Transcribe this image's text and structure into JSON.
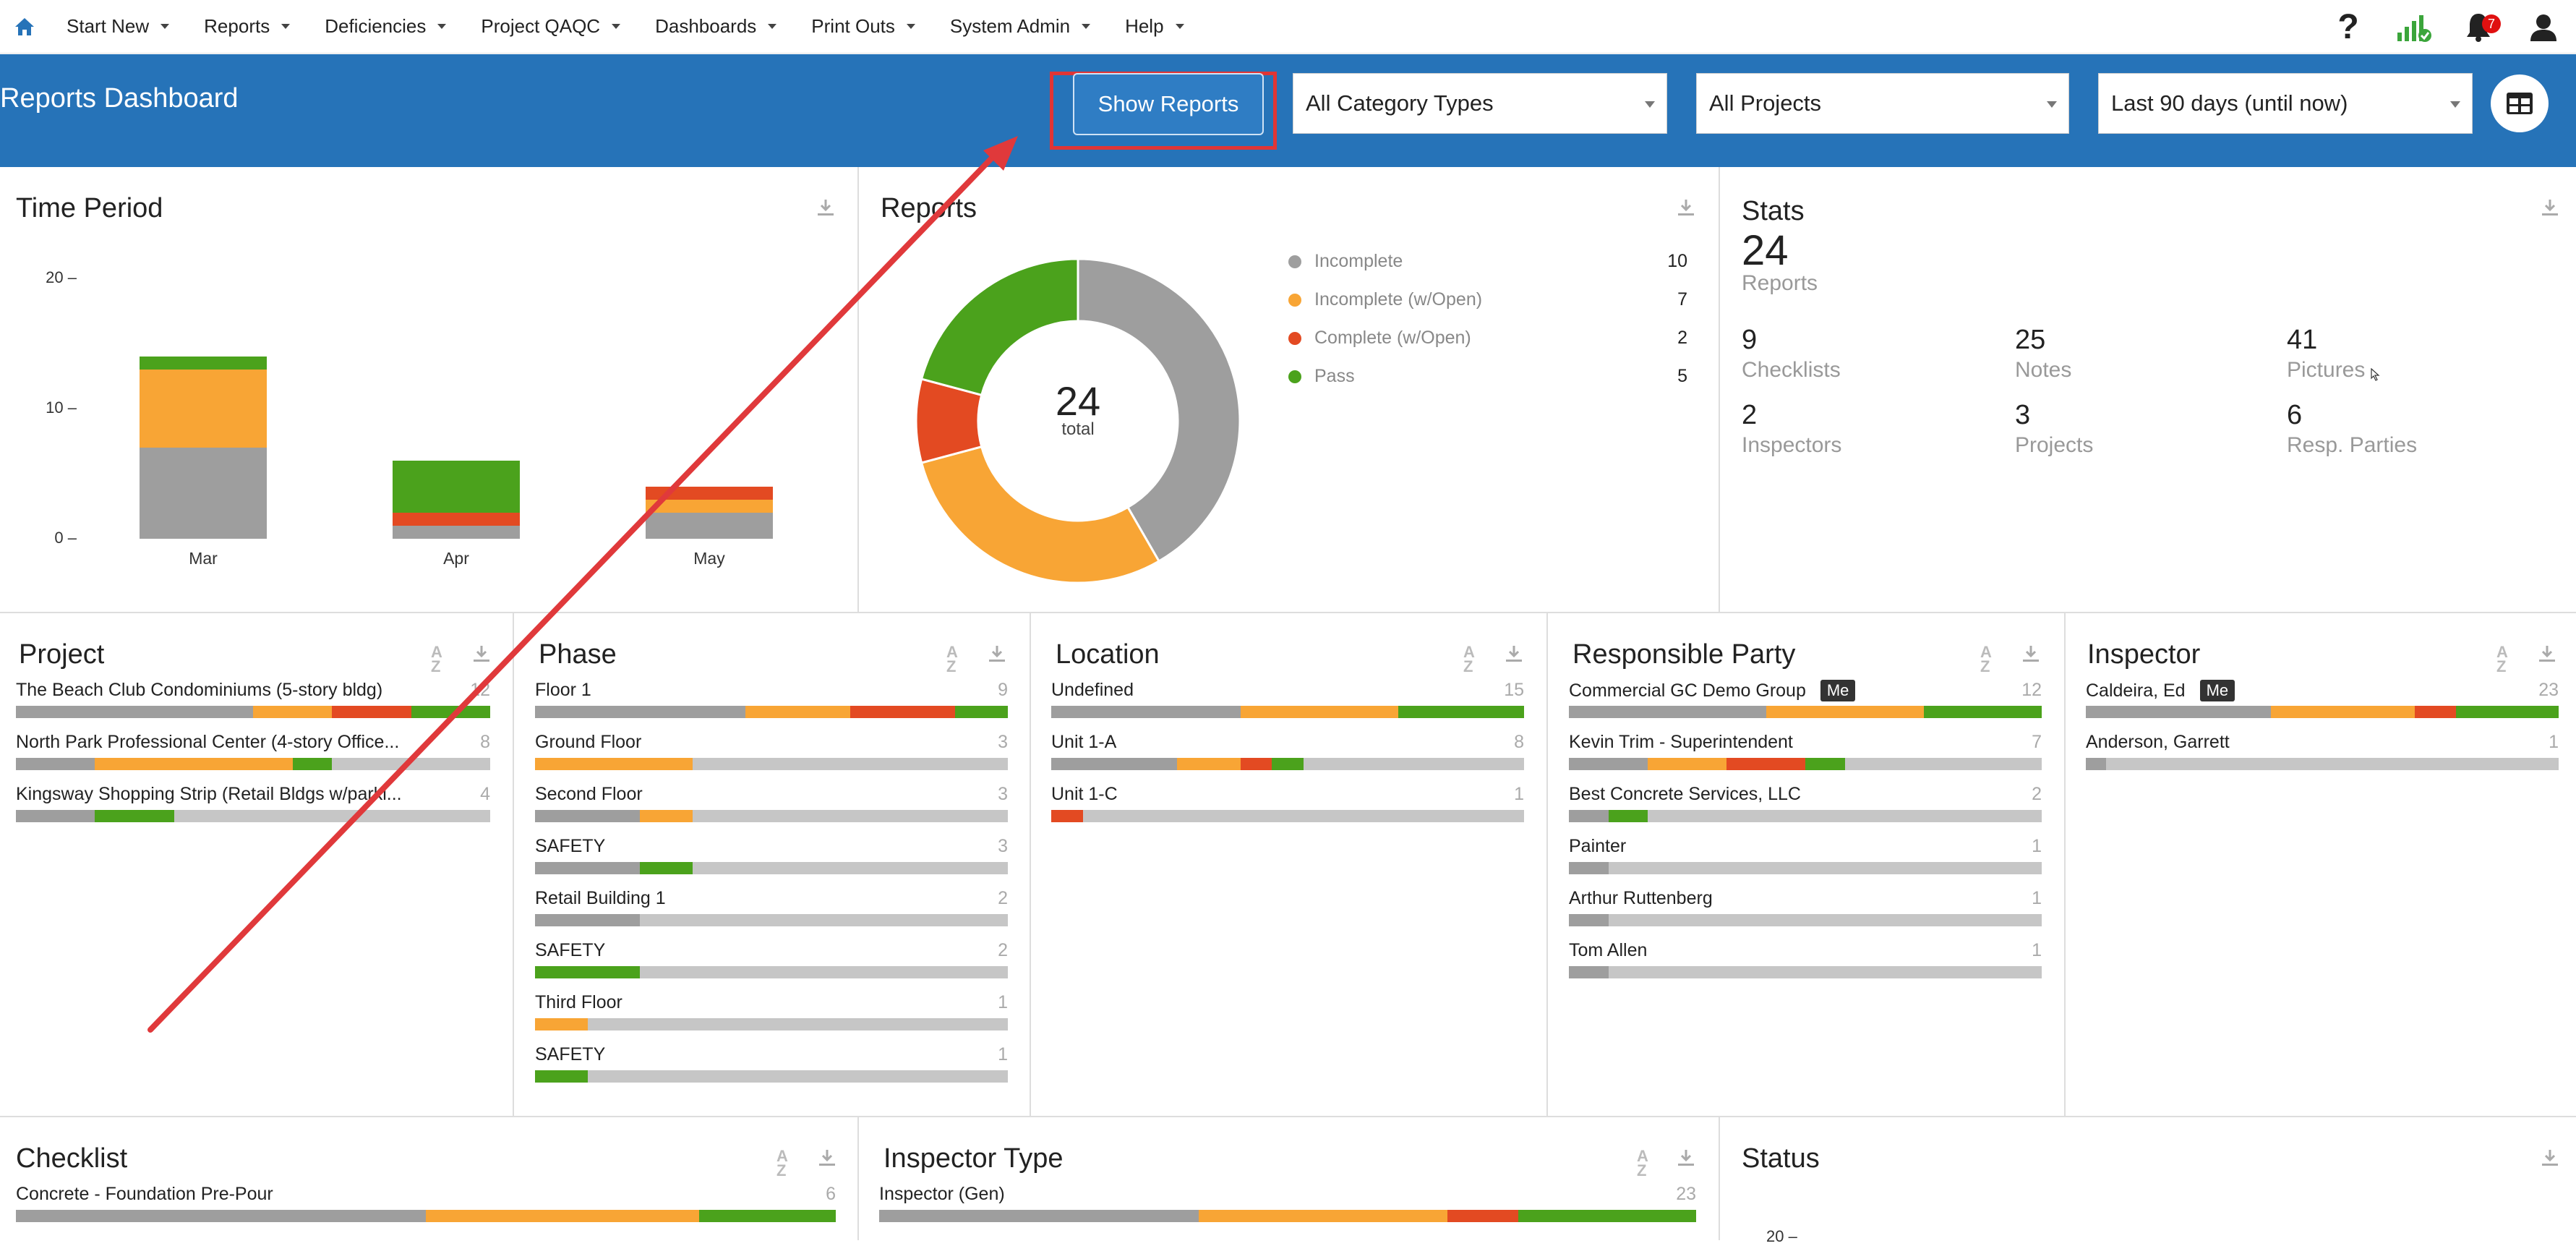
{
  "nav": {
    "items": [
      "Start New",
      "Reports",
      "Deficiencies",
      "Project QAQC",
      "Dashboards",
      "Print Outs",
      "System Admin",
      "Help"
    ],
    "notification_count": "7"
  },
  "header": {
    "title": "Reports Dashboard",
    "show_button": "Show Reports",
    "category_select": "All Category Types",
    "project_select": "All Projects",
    "date_select": "Last 90 days (until now)"
  },
  "colors": {
    "incomplete": "#9e9e9e",
    "incomplete_open": "#f8a535",
    "complete_open": "#e34a22",
    "pass": "#4ba21c",
    "track": "#c6c6c6",
    "header_blue": "#2673b8"
  },
  "time_period": {
    "title": "Time Period",
    "chart_data": {
      "type": "bar",
      "stacked": true,
      "title": "Time Period",
      "categories": [
        "Mar",
        "Apr",
        "May"
      ],
      "yticks": [
        "20 –",
        "10 –",
        "0 –"
      ],
      "ylim": [
        0,
        20
      ],
      "series": [
        {
          "name": "Incomplete",
          "values": [
            7,
            1,
            2
          ]
        },
        {
          "name": "Incomplete (w/Open)",
          "values": [
            6,
            0,
            1
          ]
        },
        {
          "name": "Complete (w/Open)",
          "values": [
            0,
            1,
            1
          ]
        },
        {
          "name": "Pass",
          "values": [
            1,
            4,
            0
          ]
        }
      ]
    }
  },
  "reports": {
    "title": "Reports",
    "total": "24",
    "total_label": "total",
    "chart_data": {
      "type": "pie",
      "title": "Reports",
      "labels": [
        "Incomplete",
        "Incomplete (w/Open)",
        "Complete (w/Open)",
        "Pass"
      ],
      "values": [
        10,
        7,
        2,
        5
      ]
    },
    "legend": [
      {
        "label": "Incomplete",
        "value": "10"
      },
      {
        "label": "Incomplete (w/Open)",
        "value": "7"
      },
      {
        "label": "Complete (w/Open)",
        "value": "2"
      },
      {
        "label": "Pass",
        "value": "5"
      }
    ]
  },
  "stats": {
    "title": "Stats",
    "total": "24",
    "total_label": "Reports",
    "items": [
      {
        "value": "9",
        "label": "Checklists"
      },
      {
        "value": "25",
        "label": "Notes"
      },
      {
        "value": "41",
        "label": "Pictures"
      },
      {
        "value": "2",
        "label": "Inspectors"
      },
      {
        "value": "3",
        "label": "Projects"
      },
      {
        "value": "6",
        "label": "Resp. Parties"
      }
    ]
  },
  "project": {
    "title": "Project",
    "rows": [
      {
        "name": "The Beach Club Condominiums (5-story bldg)",
        "count": "12",
        "segments": [
          6,
          2,
          2,
          2
        ]
      },
      {
        "name": "North Park Professional Center (4-story Office...",
        "count": "8",
        "segments": [
          2,
          5,
          0,
          1
        ]
      },
      {
        "name": "Kingsway Shopping Strip (Retail Bldgs w/parki...",
        "count": "4",
        "segments": [
          2,
          0,
          0,
          2
        ]
      }
    ]
  },
  "phase": {
    "title": "Phase",
    "rows": [
      {
        "name": "Floor 1",
        "count": "9",
        "segments": [
          4,
          2,
          2,
          1
        ]
      },
      {
        "name": "Ground Floor",
        "count": "3",
        "segments": [
          0,
          3,
          0,
          0
        ]
      },
      {
        "name": "Second Floor",
        "count": "3",
        "segments": [
          2,
          1,
          0,
          0
        ]
      },
      {
        "name": "SAFETY",
        "count": "3",
        "segments": [
          2,
          0,
          0,
          1
        ]
      },
      {
        "name": "Retail Building 1",
        "count": "2",
        "segments": [
          2,
          0,
          0,
          0
        ]
      },
      {
        "name": "SAFETY",
        "count": "2",
        "segments": [
          0,
          0,
          0,
          2
        ]
      },
      {
        "name": "Third Floor",
        "count": "1",
        "segments": [
          0,
          1,
          0,
          0
        ]
      },
      {
        "name": "SAFETY",
        "count": "1",
        "segments": [
          0,
          0,
          0,
          1
        ]
      }
    ]
  },
  "location": {
    "title": "Location",
    "rows": [
      {
        "name": "Undefined",
        "count": "15",
        "segments": [
          6,
          5,
          0,
          4
        ]
      },
      {
        "name": "Unit 1-A",
        "count": "8",
        "segments": [
          4,
          2,
          1,
          1
        ]
      },
      {
        "name": "Unit 1-C",
        "count": "1",
        "segments": [
          0,
          0,
          1,
          0
        ]
      }
    ]
  },
  "responsible_party": {
    "title": "Responsible Party",
    "me_label": "Me",
    "rows": [
      {
        "name": "Commercial GC Demo Group",
        "count": "12",
        "me": true,
        "segments": [
          5,
          4,
          0,
          3
        ]
      },
      {
        "name": "Kevin Trim - Superintendent",
        "count": "7",
        "segments": [
          2,
          2,
          2,
          1
        ]
      },
      {
        "name": "Best Concrete Services, LLC",
        "count": "2",
        "segments": [
          1,
          0,
          0,
          1
        ]
      },
      {
        "name": "Painter",
        "count": "1",
        "segments": [
          1,
          0,
          0,
          0
        ]
      },
      {
        "name": "Arthur Ruttenberg",
        "count": "1",
        "segments": [
          1,
          0,
          0,
          0
        ]
      },
      {
        "name": "Tom Allen",
        "count": "1",
        "segments": [
          1,
          0,
          0,
          0
        ]
      }
    ]
  },
  "inspector": {
    "title": "Inspector",
    "me_label": "Me",
    "rows": [
      {
        "name": "Caldeira, Ed",
        "count": "23",
        "me": true,
        "segments": [
          9,
          7,
          2,
          5
        ]
      },
      {
        "name": "Anderson, Garrett",
        "count": "1",
        "segments": [
          1,
          0,
          0,
          0
        ]
      }
    ]
  },
  "checklist": {
    "title": "Checklist",
    "rows": [
      {
        "name": "Concrete - Foundation Pre-Pour",
        "count": "6",
        "segments": [
          3,
          2,
          0,
          1
        ]
      }
    ]
  },
  "inspector_type": {
    "title": "Inspector Type",
    "rows": [
      {
        "name": "Inspector (Gen)",
        "count": "23",
        "segments": [
          9,
          7,
          2,
          5
        ]
      }
    ]
  },
  "status": {
    "title": "Status",
    "tick": "20 –"
  }
}
